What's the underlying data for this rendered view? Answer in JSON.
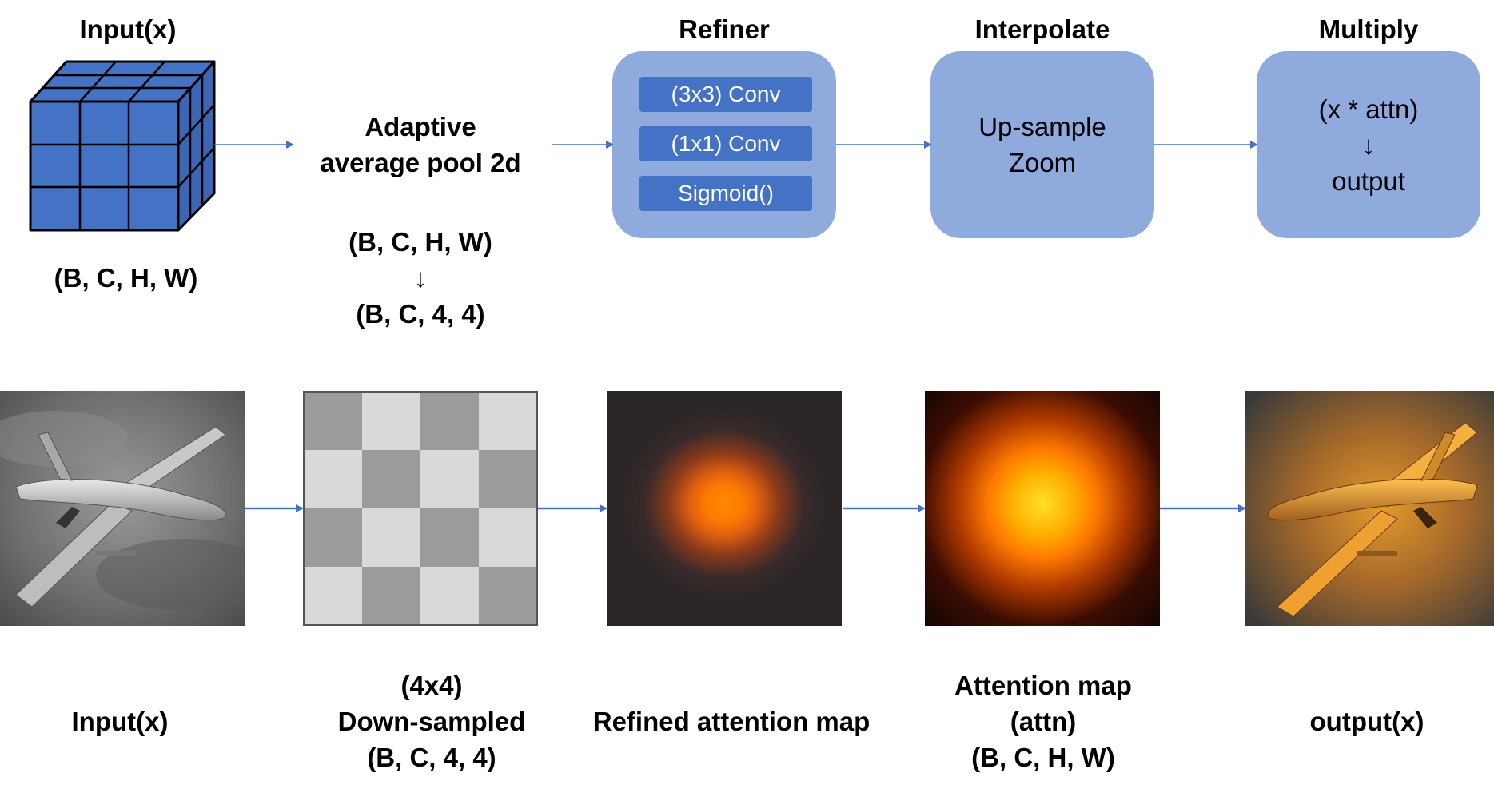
{
  "top": {
    "input_title": "Input(x)",
    "input_shape": "(B, C, H, W)",
    "pool_title_line1": "Adaptive",
    "pool_title_line2": "average pool 2d",
    "pool_shape_in": "(B, C, H, W)",
    "pool_arrow": "↓",
    "pool_shape_out": "(B, C, 4, 4)",
    "refiner_title": "Refiner",
    "refiner_layers": [
      "(3x3) Conv",
      "(1x1) Conv",
      "Sigmoid()"
    ],
    "interpolate_title": "Interpolate",
    "interpolate_line1": "Up-sample",
    "interpolate_line2": "Zoom",
    "multiply_title": "Multiply",
    "multiply_line1": "(x * attn)",
    "multiply_arrow": "↓",
    "multiply_line2": "output"
  },
  "bottom": {
    "input_label": "Input(x)",
    "downsampled_line1": "(4x4)",
    "downsampled_line2": "Down-sampled",
    "downsampled_line3": "(B, C, 4, 4)",
    "refined_label": "Refined attention map",
    "attention_line1": "Attention map",
    "attention_line2": "(attn)",
    "attention_line3": "(B, C, H, W)",
    "output_label": "output(x)"
  },
  "grid_4x4_shades": [
    [
      "dark",
      "light",
      "dark",
      "light"
    ],
    [
      "light",
      "dark",
      "light",
      "dark"
    ],
    [
      "dark",
      "light",
      "dark",
      "light"
    ],
    [
      "light",
      "dark",
      "light",
      "dark"
    ]
  ],
  "colors": {
    "box_fill": "#8faadc",
    "pill_fill": "#4472c4",
    "cube_fill": "#4472c4",
    "arrow": "#4472c4",
    "grid_dark": "#9b9b9b",
    "grid_light": "#d9d9d9"
  }
}
